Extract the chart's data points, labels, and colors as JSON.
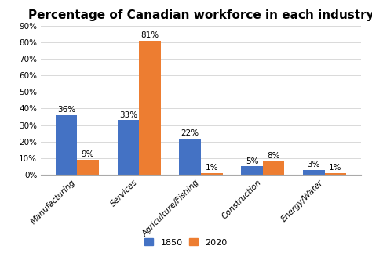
{
  "title": "Percentage of Canadian workforce in each industry",
  "categories": [
    "Manufacturing",
    "Services",
    "Agriculture/Fishing",
    "Construction",
    "Energy/Water"
  ],
  "values_1850": [
    36,
    33,
    22,
    5,
    3
  ],
  "values_2020": [
    9,
    81,
    1,
    8,
    1
  ],
  "color_1850": "#4472C4",
  "color_2020": "#ED7D31",
  "legend_labels": [
    "1850",
    "2020"
  ],
  "ylim": [
    0,
    90
  ],
  "yticks": [
    0,
    10,
    20,
    30,
    40,
    50,
    60,
    70,
    80,
    90
  ],
  "ytick_labels": [
    "0%",
    "10%",
    "20%",
    "30%",
    "40%",
    "50%",
    "60%",
    "70%",
    "80%",
    "90%"
  ],
  "bar_width": 0.35,
  "title_fontsize": 11,
  "tick_fontsize": 7.5,
  "legend_fontsize": 8,
  "annotation_fontsize": 7.5
}
